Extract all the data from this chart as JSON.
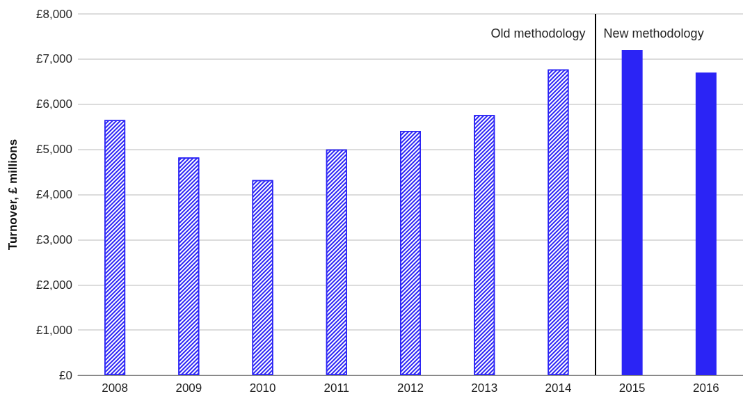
{
  "chart_data": {
    "type": "bar",
    "ylabel": "Turnover, £ millions",
    "x": [
      2008,
      2009,
      2010,
      2011,
      2012,
      2013,
      2014,
      2015,
      2016
    ],
    "xlim": [
      2007.5,
      2016.5
    ],
    "xticks": [
      2008,
      2009,
      2010,
      2011,
      2012,
      2013,
      2014,
      2015,
      2016
    ],
    "series": [
      {
        "name": "Old methodology",
        "color": "#2b24f5",
        "values": [
          5650,
          4820,
          4320,
          5000,
          5410,
          5760,
          6770,
          null,
          null
        ]
      },
      {
        "name": "New methodology",
        "color": "#2b24f5",
        "values": [
          null,
          null,
          null,
          null,
          null,
          null,
          null,
          7200,
          6700
        ]
      }
    ],
    "ylim": [
      0,
      8000
    ],
    "yticks": [
      {
        "value": 0,
        "label": "£0"
      },
      {
        "value": 1000,
        "label": "£1,000"
      },
      {
        "value": 2000,
        "label": "£2,000"
      },
      {
        "value": 3000,
        "label": "£3,000"
      },
      {
        "value": 4000,
        "label": "£4,000"
      },
      {
        "value": 5000,
        "label": "£5,000"
      },
      {
        "value": 6000,
        "label": "£6,000"
      },
      {
        "value": 7000,
        "label": "£7,000"
      },
      {
        "value": 8000,
        "label": "£8,000"
      }
    ],
    "ref_lines": [
      {
        "axis": "x",
        "value": 2014.5,
        "color": "#000000"
      }
    ],
    "grid": "y",
    "legend": false
  }
}
